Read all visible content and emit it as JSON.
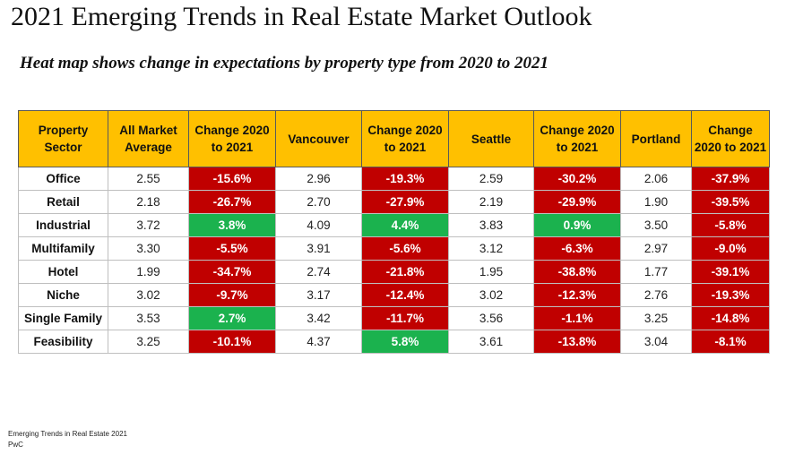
{
  "title": "2021 Emerging Trends in Real Estate Market Outlook",
  "subtitle": "Heat map shows change in expectations by property type from 2020 to 2021",
  "source": [
    "Emerging Trends in Real Estate 2021",
    "PwC"
  ],
  "colors": {
    "header": "#FFC000",
    "negative": "#C00000",
    "positive": "#1BB24E"
  },
  "chart_data": {
    "type": "table",
    "columns": [
      "Property Sector",
      "All Market Average",
      "Change 2020 to 2021",
      "Vancouver",
      "Change 2020 to 2021",
      "Seattle",
      "Change 2020 to 2021",
      "Portland",
      "Change 2020 to 2021"
    ],
    "rows": [
      [
        "Office",
        "2.55",
        "-15.6%",
        "2.96",
        "-19.3%",
        "2.59",
        "-30.2%",
        "2.06",
        "-37.9%"
      ],
      [
        "Retail",
        "2.18",
        "-26.7%",
        "2.70",
        "-27.9%",
        "2.19",
        "-29.9%",
        "1.90",
        "-39.5%"
      ],
      [
        "Industrial",
        "3.72",
        "3.8%",
        "4.09",
        "4.4%",
        "3.83",
        "0.9%",
        "3.50",
        "-5.8%"
      ],
      [
        "Multifamily",
        "3.30",
        "-5.5%",
        "3.91",
        "-5.6%",
        "3.12",
        "-6.3%",
        "2.97",
        "-9.0%"
      ],
      [
        "Hotel",
        "1.99",
        "-34.7%",
        "2.74",
        "-21.8%",
        "1.95",
        "-38.8%",
        "1.77",
        "-39.1%"
      ],
      [
        "Niche",
        "3.02",
        "-9.7%",
        "3.17",
        "-12.4%",
        "3.02",
        "-12.3%",
        "2.76",
        "-19.3%"
      ],
      [
        "Single Family",
        "3.53",
        "2.7%",
        "3.42",
        "-11.7%",
        "3.56",
        "-1.1%",
        "3.25",
        "-14.8%"
      ],
      [
        "Feasibility",
        "3.25",
        "-10.1%",
        "4.37",
        "5.8%",
        "3.61",
        "-13.8%",
        "3.04",
        "-8.1%"
      ]
    ]
  }
}
